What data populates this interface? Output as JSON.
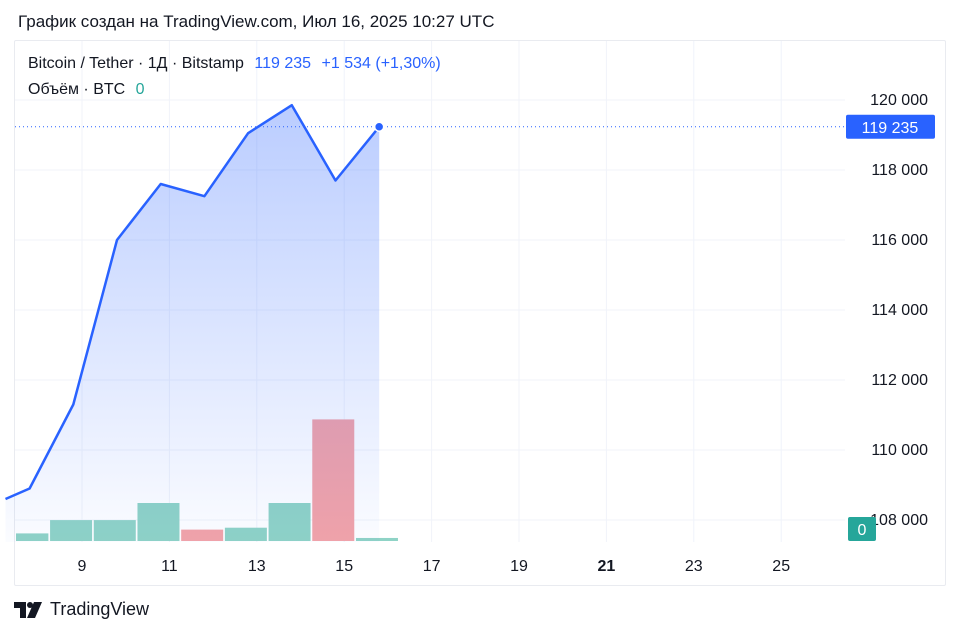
{
  "caption": "График создан на TradingView.com, Июл 16, 2025 10:27 UTC",
  "legend": {
    "symbol": "Bitcoin / Tether · 1Д · Bitstamp",
    "price": "119 235",
    "change": "+1 534",
    "change_pct": "(+1,30%)",
    "volume_label": "Объём · BTC",
    "volume_value": "0"
  },
  "footer": {
    "brand": "TradingView"
  },
  "colors": {
    "line": "#2962ff",
    "up_volume": "#8fd3c6",
    "down_volume": "#f3a3a8",
    "price_tag": "#2962ff",
    "volume_tag": "#26a69a"
  },
  "chart_data": {
    "type": "area",
    "x_ticks": [
      "9",
      "11",
      "13",
      "15",
      "17",
      "19",
      "21",
      "23",
      "25"
    ],
    "x_tick_days": [
      9,
      11,
      13,
      15,
      17,
      19,
      21,
      23,
      25
    ],
    "x_tick_bold": [
      "21"
    ],
    "y_ticks": [
      "108 000",
      "110 000",
      "112 000",
      "114 000",
      "116 000",
      "118 000",
      "120 000"
    ],
    "y_tick_values": [
      108000,
      110000,
      112000,
      114000,
      116000,
      118000,
      120000
    ],
    "ylim": [
      107200,
      121200
    ],
    "xlim": [
      7.25,
      26.95
    ],
    "series": [
      {
        "x": [
          7.25,
          7.8,
          8.8,
          9.8,
          10.8,
          11.8,
          12.8,
          13.8,
          14.8,
          15.8
        ],
        "y": [
          108600,
          108900,
          111300,
          116000,
          117600,
          117250,
          119050,
          119850,
          117700,
          119235
        ]
      }
    ],
    "volume": {
      "x": [
        7.75,
        8.75,
        9.75,
        10.75,
        11.75,
        12.75,
        13.75,
        14.75,
        15.75
      ],
      "values": [
        0.2,
        0.55,
        0.55,
        1.0,
        0.3,
        0.35,
        1.0,
        3.2,
        0.08
      ],
      "direction": [
        "up",
        "up",
        "up",
        "up",
        "down",
        "up",
        "up",
        "down",
        "up"
      ]
    },
    "last_price": "119 235",
    "last_price_value": 119235,
    "last_volume": "0",
    "grid": true
  }
}
